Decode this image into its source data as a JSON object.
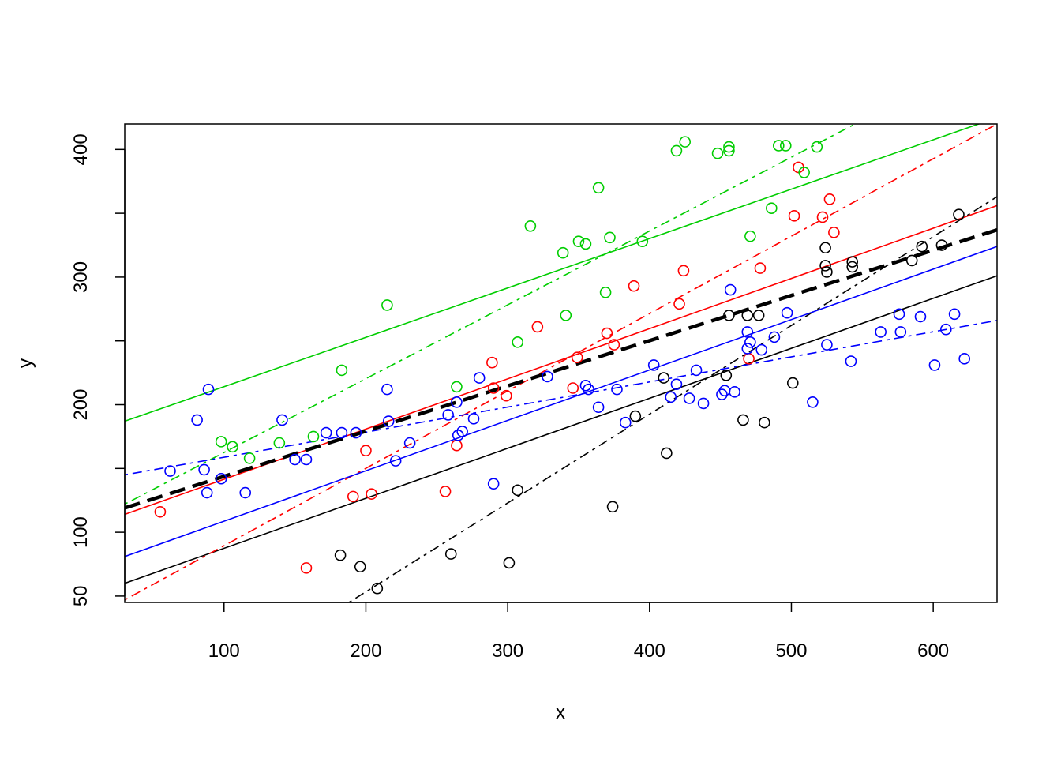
{
  "chart_data": {
    "type": "scatter",
    "title": "",
    "xlabel": "x",
    "ylabel": "y",
    "xlim": [
      30,
      645
    ],
    "ylim": [
      45,
      420
    ],
    "x_ticks": [
      100,
      200,
      300,
      400,
      500,
      600
    ],
    "y_ticks": [
      50,
      100,
      150,
      200,
      250,
      300,
      350,
      400
    ],
    "y_tick_labels": [
      "50",
      "100",
      "",
      "200",
      "",
      "300",
      "",
      "400"
    ],
    "grid": false,
    "legend": "none",
    "groups": [
      {
        "color": "#000000",
        "points": [
          [
            182,
            82
          ],
          [
            196,
            73
          ],
          [
            208,
            56
          ],
          [
            260,
            83
          ],
          [
            301,
            76
          ],
          [
            307,
            133
          ],
          [
            374,
            120
          ],
          [
            390,
            191
          ],
          [
            410,
            221
          ],
          [
            412,
            162
          ],
          [
            454,
            223
          ],
          [
            456,
            270
          ],
          [
            466,
            188
          ],
          [
            469,
            270
          ],
          [
            477,
            270
          ],
          [
            481,
            186
          ],
          [
            501,
            217
          ],
          [
            524,
            323
          ],
          [
            524,
            309
          ],
          [
            525,
            304
          ],
          [
            543,
            308
          ],
          [
            543,
            312
          ],
          [
            585,
            313
          ],
          [
            592,
            324
          ],
          [
            606,
            325
          ],
          [
            618,
            349
          ]
        ],
        "fits": [
          {
            "style": "solid",
            "from": [
              30,
              60
            ],
            "to": [
              645,
              301
            ]
          },
          {
            "style": "dotdash",
            "from": [
              188,
              45
            ],
            "to": [
              645,
              363
            ]
          }
        ]
      },
      {
        "color": "#ff0000",
        "points": [
          [
            55,
            116
          ],
          [
            158,
            72
          ],
          [
            191,
            128
          ],
          [
            200,
            164
          ],
          [
            204,
            130
          ],
          [
            256,
            132
          ],
          [
            264,
            168
          ],
          [
            289,
            233
          ],
          [
            290,
            213
          ],
          [
            299,
            207
          ],
          [
            321,
            261
          ],
          [
            346,
            213
          ],
          [
            349,
            237
          ],
          [
            370,
            256
          ],
          [
            375,
            247
          ],
          [
            389,
            293
          ],
          [
            421,
            279
          ],
          [
            424,
            305
          ],
          [
            470,
            236
          ],
          [
            478,
            307
          ],
          [
            502,
            348
          ],
          [
            505,
            386
          ],
          [
            522,
            347
          ],
          [
            527,
            361
          ],
          [
            530,
            335
          ]
        ],
        "fits": [
          {
            "style": "solid",
            "from": [
              30,
              114
            ],
            "to": [
              645,
              356
            ]
          },
          {
            "style": "dotdash",
            "from": [
              30,
              47
            ],
            "to": [
              645,
              420
            ]
          }
        ]
      },
      {
        "color": "#00cd00",
        "points": [
          [
            98,
            171
          ],
          [
            106,
            167
          ],
          [
            118,
            158
          ],
          [
            139,
            170
          ],
          [
            163,
            175
          ],
          [
            183,
            227
          ],
          [
            215,
            278
          ],
          [
            264,
            214
          ],
          [
            307,
            249
          ],
          [
            316,
            340
          ],
          [
            339,
            319
          ],
          [
            341,
            270
          ],
          [
            350,
            328
          ],
          [
            355,
            326
          ],
          [
            364,
            370
          ],
          [
            369,
            288
          ],
          [
            372,
            331
          ],
          [
            395,
            328
          ],
          [
            419,
            399
          ],
          [
            425,
            406
          ],
          [
            448,
            397
          ],
          [
            456,
            399
          ],
          [
            456,
            402
          ],
          [
            471,
            332
          ],
          [
            486,
            354
          ],
          [
            491,
            403
          ],
          [
            496,
            403
          ],
          [
            509,
            382
          ],
          [
            518,
            402
          ]
        ],
        "fits": [
          {
            "style": "solid",
            "from": [
              30,
              187
            ],
            "to": [
              645,
              425
            ]
          },
          {
            "style": "dotdash",
            "from": [
              30,
              122
            ],
            "to": [
              545,
              420
            ]
          }
        ]
      },
      {
        "color": "#0000ff",
        "points": [
          [
            62,
            148
          ],
          [
            81,
            188
          ],
          [
            86,
            149
          ],
          [
            88,
            131
          ],
          [
            89,
            212
          ],
          [
            98,
            142
          ],
          [
            115,
            131
          ],
          [
            141,
            188
          ],
          [
            150,
            157
          ],
          [
            158,
            157
          ],
          [
            172,
            178
          ],
          [
            183,
            178
          ],
          [
            193,
            178
          ],
          [
            215,
            212
          ],
          [
            216,
            187
          ],
          [
            221,
            156
          ],
          [
            231,
            170
          ],
          [
            258,
            192
          ],
          [
            264,
            202
          ],
          [
            265,
            176
          ],
          [
            268,
            179
          ],
          [
            276,
            189
          ],
          [
            280,
            221
          ],
          [
            290,
            138
          ],
          [
            328,
            222
          ],
          [
            355,
            215
          ],
          [
            357,
            212
          ],
          [
            364,
            198
          ],
          [
            377,
            212
          ],
          [
            383,
            186
          ],
          [
            403,
            231
          ],
          [
            415,
            206
          ],
          [
            419,
            216
          ],
          [
            428,
            205
          ],
          [
            433,
            227
          ],
          [
            438,
            201
          ],
          [
            451,
            208
          ],
          [
            453,
            211
          ],
          [
            457,
            290
          ],
          [
            460,
            210
          ],
          [
            469,
            257
          ],
          [
            469,
            244
          ],
          [
            471,
            249
          ],
          [
            479,
            243
          ],
          [
            488,
            253
          ],
          [
            497,
            272
          ],
          [
            515,
            202
          ],
          [
            525,
            247
          ],
          [
            542,
            234
          ],
          [
            563,
            257
          ],
          [
            576,
            271
          ],
          [
            577,
            257
          ],
          [
            591,
            269
          ],
          [
            601,
            231
          ],
          [
            609,
            259
          ],
          [
            615,
            271
          ],
          [
            622,
            236
          ]
        ],
        "fits": [
          {
            "style": "solid",
            "from": [
              30,
              81
            ],
            "to": [
              645,
              324
            ]
          },
          {
            "style": "dotdash",
            "from": [
              30,
              145
            ],
            "to": [
              645,
              266
            ]
          }
        ]
      }
    ],
    "overall_fit": {
      "color": "#000000",
      "style": "dashed-thick",
      "from": [
        30,
        119
      ],
      "to": [
        645,
        337
      ]
    }
  }
}
